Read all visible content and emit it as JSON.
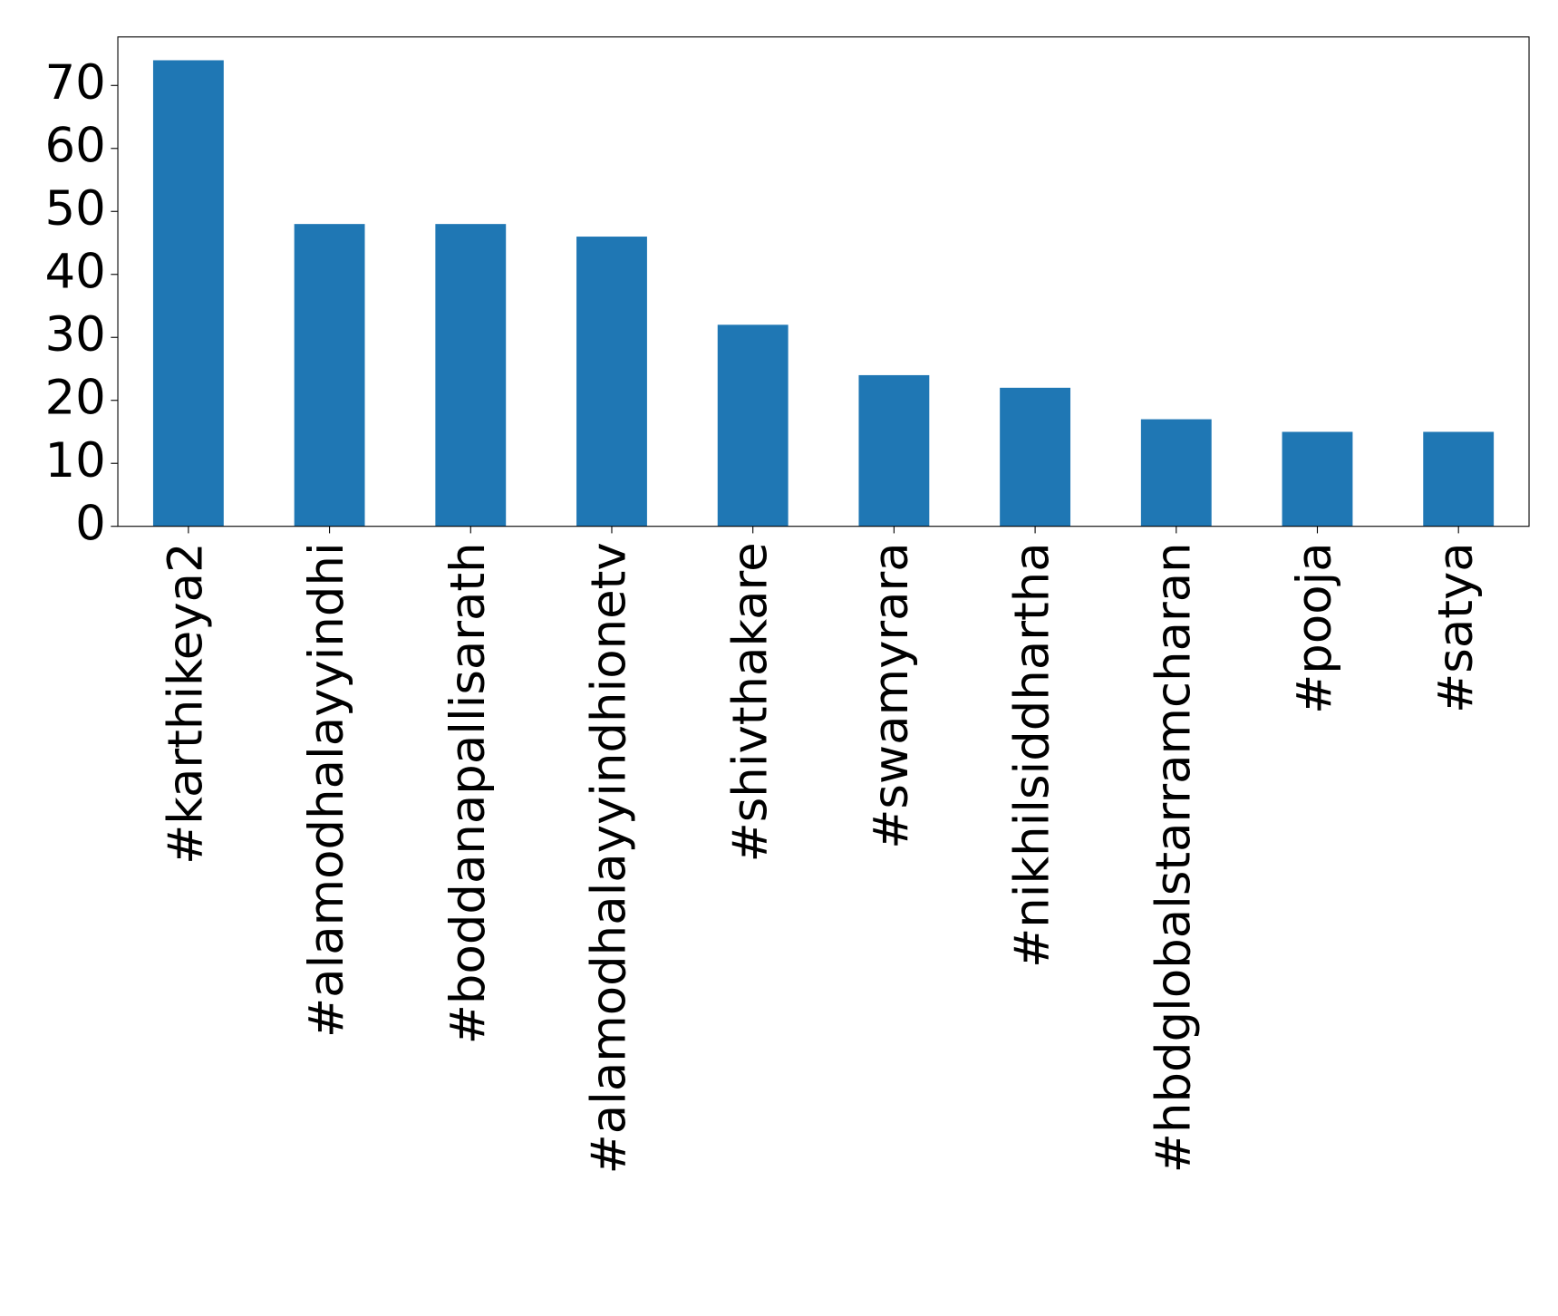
{
  "chart_data": {
    "type": "bar",
    "categories": [
      "#karthikeya2",
      "#alamodhalayyindhi",
      "#boddanapallisarath",
      "#alamodhalayyindhionetv",
      "#shivthakare",
      "#swamyrara",
      "#nikhilsiddhartha",
      "#hbdglobalstarramcharan",
      "#pooja",
      "#satya"
    ],
    "values": [
      74,
      48,
      48,
      46,
      32,
      24,
      22,
      17,
      15,
      15
    ],
    "color": "#1f77b4",
    "ylim": [
      0,
      77.7
    ],
    "yticks": [
      0,
      10,
      20,
      30,
      40,
      50,
      60,
      70
    ],
    "grid": false
  }
}
